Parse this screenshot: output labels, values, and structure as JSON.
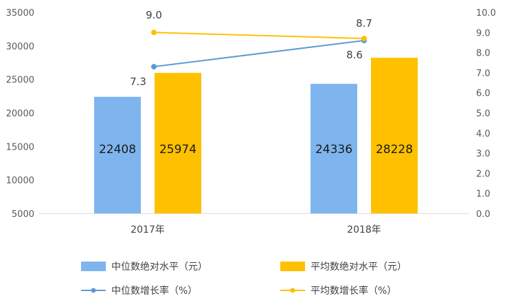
{
  "chart_data": {
    "type": "bar",
    "categories": [
      "2017年",
      "2018年"
    ],
    "series": [
      {
        "name": "中位数绝对水平（元）",
        "kind": "bar",
        "axis": "left",
        "color": "#7fb5ef",
        "values": [
          22408,
          24336
        ]
      },
      {
        "name": "平均数绝对水平（元）",
        "kind": "bar",
        "axis": "left",
        "color": "#ffc000",
        "values": [
          25974,
          28228
        ]
      },
      {
        "name": "中位数增长率（%）",
        "kind": "line",
        "axis": "right",
        "color": "#5b9bd5",
        "values": [
          7.3,
          8.6
        ]
      },
      {
        "name": "平均数增长率（%）",
        "kind": "line",
        "axis": "right",
        "color": "#ffc000",
        "values": [
          9.0,
          8.7
        ]
      }
    ],
    "left_axis": {
      "min": 5000,
      "max": 35000,
      "ticks": [
        "5000",
        "10000",
        "15000",
        "20000",
        "25000",
        "30000",
        "35000"
      ]
    },
    "right_axis": {
      "min": 0,
      "max": 10,
      "ticks": [
        "0.0",
        "1.0",
        "2.0",
        "3.0",
        "4.0",
        "5.0",
        "6.0",
        "7.0",
        "8.0",
        "9.0",
        "10.0"
      ]
    },
    "bar_labels": [
      [
        "22408",
        "24336"
      ],
      [
        "25974",
        "28228"
      ]
    ],
    "point_labels": [
      [
        "7.3",
        "8.6"
      ],
      [
        "9.0",
        "8.7"
      ]
    ],
    "legend_position": "bottom",
    "grid": false
  }
}
